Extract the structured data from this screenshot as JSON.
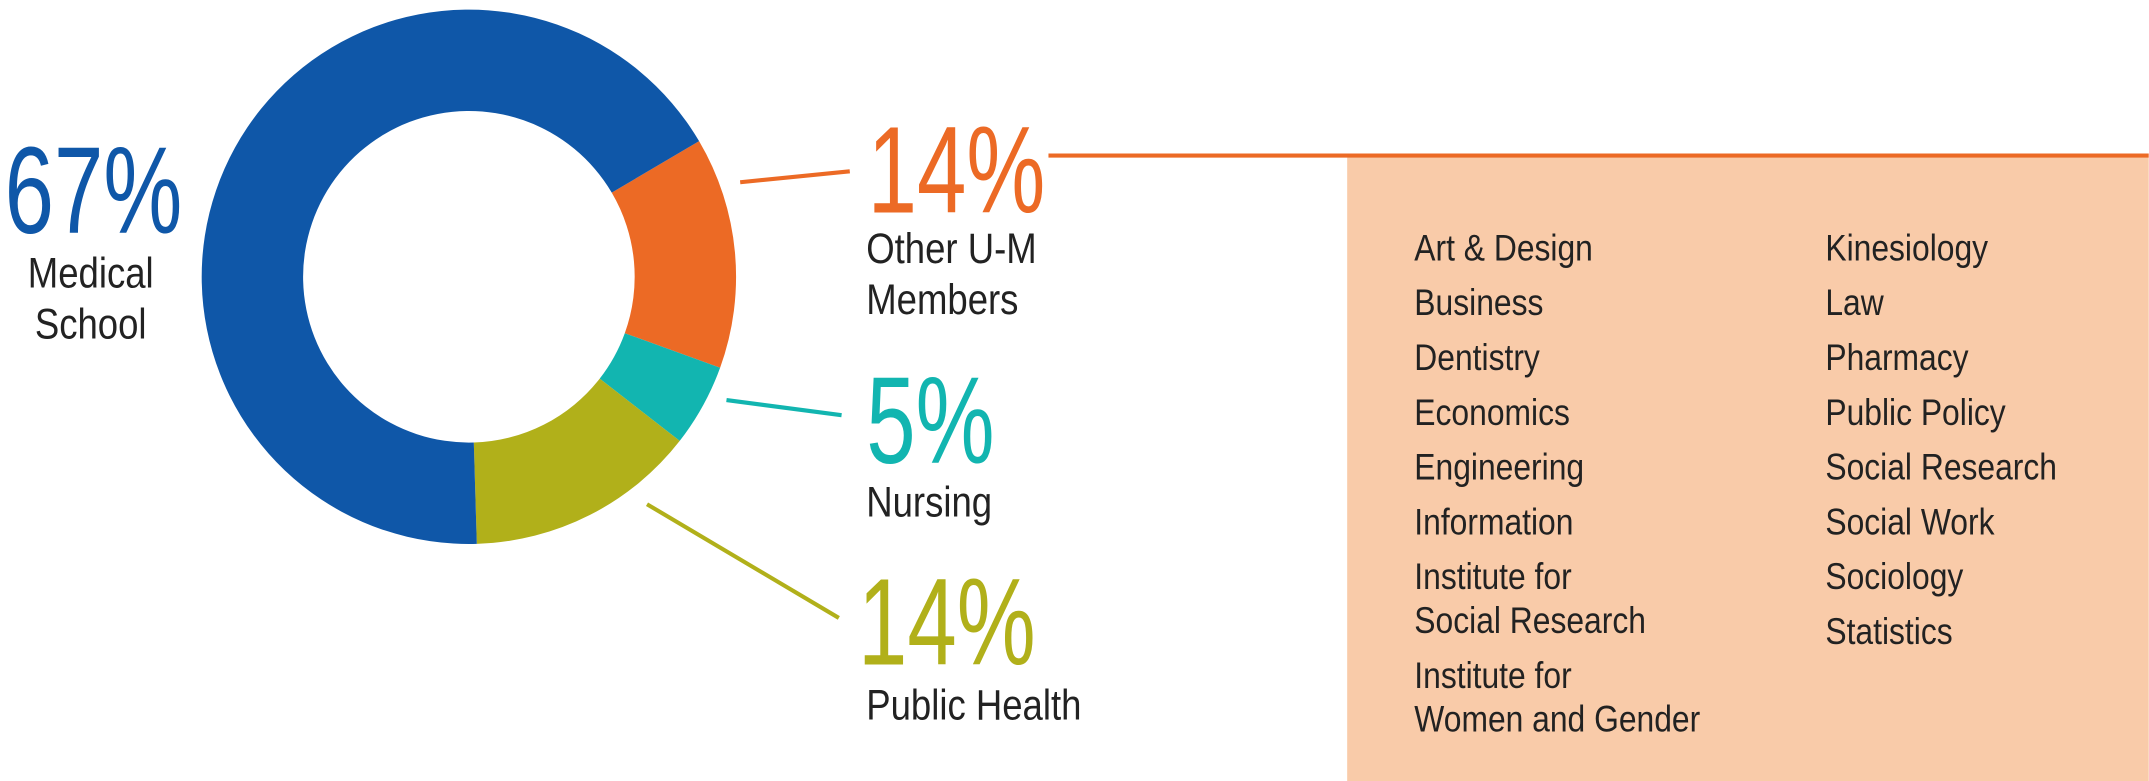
{
  "chart_data": {
    "type": "pie",
    "categories": [
      "Medical\nSchool",
      "Other U-M\nMembers",
      "Nursing",
      "Public Health"
    ],
    "values": [
      67,
      14,
      5,
      14
    ],
    "value_labels": [
      "67%",
      "14%",
      "5%",
      "14%"
    ],
    "colors": [
      "#0f57a8",
      "#ec6a25",
      "#12b5b0",
      "#b1b01a"
    ],
    "other_members": [
      [
        "Art & Design",
        "Business",
        "Dentistry",
        "Economics",
        "Engineering",
        "Information",
        "Institute for\nSocial Research",
        "Institute for\nWomen and Gender"
      ],
      [
        "Kinesiology",
        "Law",
        "Pharmacy",
        "Public Policy",
        "Social Research",
        "Social Work",
        "Sociology",
        "Statistics"
      ]
    ]
  }
}
